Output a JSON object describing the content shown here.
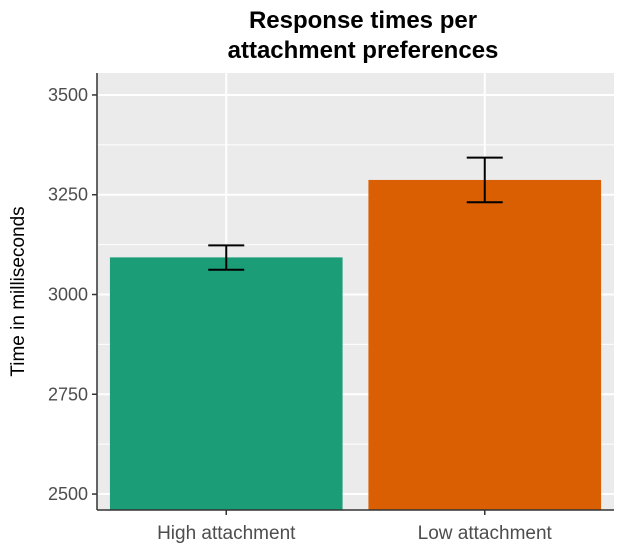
{
  "chart_data": {
    "type": "bar",
    "title_lines": [
      "Response times per",
      "attachment preferences"
    ],
    "xlabel": "",
    "ylabel": "Time in milliseconds",
    "categories": [
      "High attachment",
      "Low attachment"
    ],
    "values": [
      3093,
      3287
    ],
    "error_low": [
      3062,
      3231
    ],
    "error_high": [
      3123,
      3343
    ],
    "colors": [
      "#1b9e77",
      "#d95f02"
    ],
    "yticks": [
      "2500",
      "2750",
      "3000",
      "3250",
      "3500"
    ],
    "ylim": [
      2460,
      3555
    ],
    "grid": true,
    "panel_color": "#ebebeb"
  }
}
